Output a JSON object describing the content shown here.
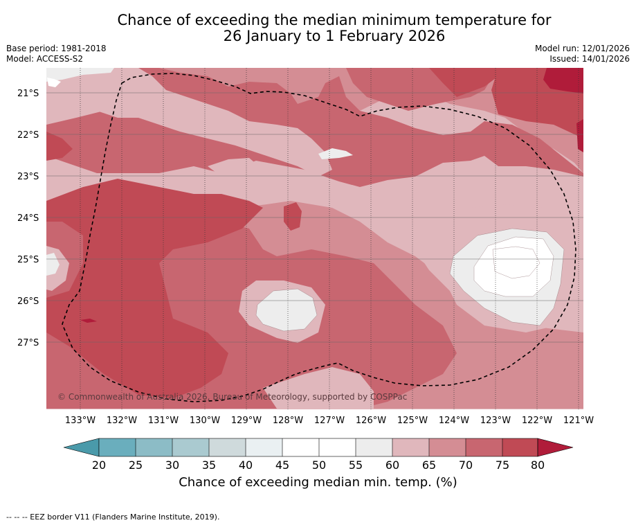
{
  "title": {
    "line1": "Chance of exceeding the median minimum temperature for",
    "line2": "26 January to 1 February 2026"
  },
  "meta": {
    "base_period": "Base period: 1981-2018",
    "model": "Model: ACCESS-S2",
    "model_run": "Model run: 12/01/2026",
    "issued": "Issued: 14/01/2026"
  },
  "map": {
    "lat_labels": [
      "21°S",
      "22°S",
      "23°S",
      "24°S",
      "25°S",
      "26°S",
      "27°S"
    ],
    "lon_labels": [
      "133°W",
      "132°W",
      "131°W",
      "130°W",
      "129°W",
      "128°W",
      "127°W",
      "126°W",
      "125°W",
      "124°W",
      "123°W",
      "122°W",
      "121°W"
    ],
    "copyright": "© Commonwealth of Australia 2026, Bureau of Meteorology, supported by COSPPac",
    "eez_label": "EEZ border (dashed)"
  },
  "colorbar": {
    "ticks": [
      "20",
      "25",
      "30",
      "35",
      "40",
      "45",
      "50",
      "55",
      "60",
      "65",
      "70",
      "75",
      "80"
    ],
    "label": "Chance of exceeding median min. temp. (%)",
    "colors": {
      "under": "#4a9aaa",
      "c20_25": "#6aaebd",
      "c25_30": "#8cbcc6",
      "c30_35": "#aacad0",
      "c35_40": "#cfdadc",
      "c40_45": "#eaf0f2",
      "c45_50": "#ffffff",
      "c50_55": "#ffffff",
      "c55_60": "#ededed",
      "c60_65": "#e0b7bc",
      "c65_70": "#d48d94",
      "c70_75": "#c86670",
      "c75_80": "#c04a55",
      "over": "#b01c3a"
    }
  },
  "footnote": "--  --  -- EEZ border V11 (Flanders Marine Institute, 2019)."
}
